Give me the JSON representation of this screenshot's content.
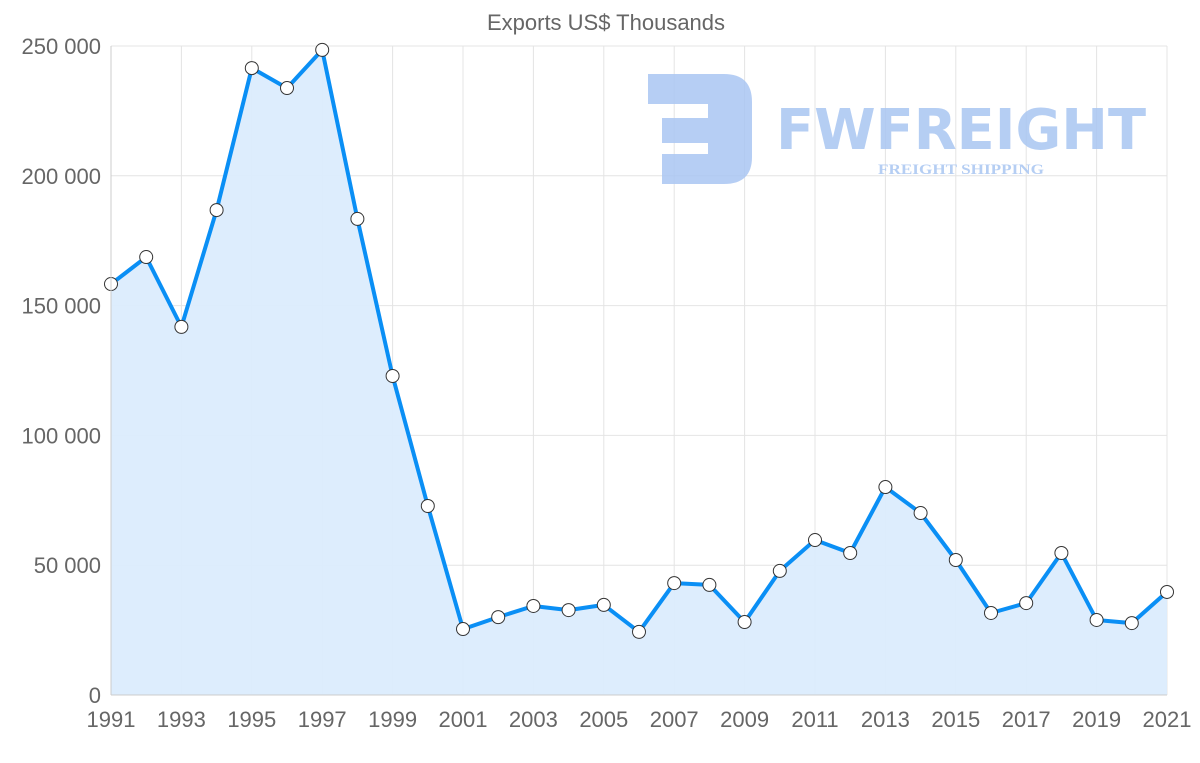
{
  "chart_data": {
    "type": "area",
    "title": "Exports US$ Thousands",
    "xlabel": "",
    "ylabel": "",
    "x": [
      1991,
      1992,
      1993,
      1994,
      1995,
      1996,
      1997,
      1998,
      1999,
      2000,
      2001,
      2002,
      2003,
      2004,
      2005,
      2006,
      2007,
      2008,
      2009,
      2010,
      2011,
      2012,
      2013,
      2014,
      2015,
      2016,
      2017,
      2018,
      2019,
      2020,
      2021
    ],
    "series": [
      {
        "name": "Exports US$ Thousands",
        "values": [
          158300,
          168700,
          141800,
          186800,
          241500,
          233800,
          248500,
          183400,
          122900,
          72800,
          25400,
          30000,
          34300,
          32700,
          34700,
          24300,
          43100,
          42400,
          28100,
          47800,
          59700,
          54700,
          80100,
          70100,
          52000,
          31600,
          35400,
          54700,
          28900,
          27700,
          39700
        ]
      }
    ],
    "ylim": [
      0,
      250000
    ],
    "yticks": [
      0,
      50000,
      100000,
      150000,
      200000,
      250000
    ],
    "ytick_labels": [
      "0",
      "50 000",
      "100 000",
      "150 000",
      "200 000",
      "250 000"
    ],
    "xtick_labels": [
      "1991",
      "1993",
      "1995",
      "1997",
      "1999",
      "2001",
      "2003",
      "2005",
      "2007",
      "2009",
      "2011",
      "2013",
      "2015",
      "2017",
      "2019",
      "2021"
    ],
    "grid": true,
    "colors": {
      "line": "#0a8ff5",
      "fill": "#dbecfd",
      "grid": "#e4e4e4"
    }
  },
  "watermark": {
    "brand": "FWFREIGHT",
    "tagline": "FREIGHT SHIPPING",
    "color": "#a9c6f2"
  }
}
